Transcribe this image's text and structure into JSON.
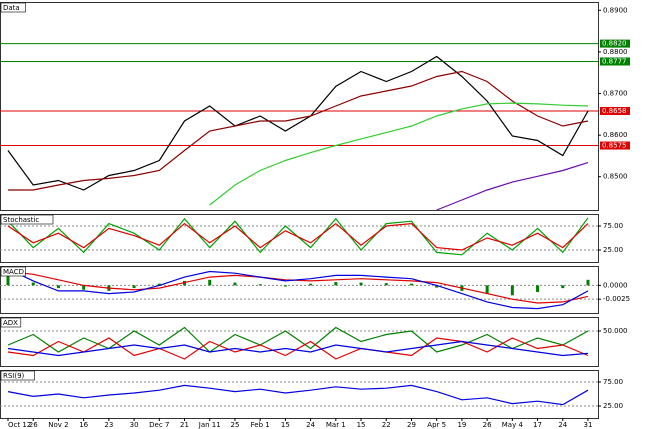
{
  "chart_data": [
    {
      "type": "line",
      "title": "Data",
      "categories": [
        "Oct 12",
        "26",
        "Nov 2",
        "16",
        "23",
        "30",
        "Dec 7",
        "21",
        "Jan 11",
        "25",
        "Feb 1",
        "15",
        "24",
        "Mar 1",
        "15",
        "22",
        "29",
        "Apr 5",
        "19",
        "26",
        "May 4",
        "17",
        "24",
        "31"
      ],
      "ylim": [
        0.842,
        0.892
      ],
      "yticks": [
        {
          "value": 0.89,
          "label": "0.8900"
        },
        {
          "value": 0.88,
          "label": "0.8800"
        },
        {
          "value": 0.87,
          "label": "0.8700"
        },
        {
          "value": 0.86,
          "label": "0.8600"
        },
        {
          "value": 0.85,
          "label": "0.8500"
        }
      ],
      "levels": [
        {
          "value": 0.882,
          "color": "#008000",
          "label": "0.8820"
        },
        {
          "value": 0.8777,
          "color": "#008000",
          "label": "0.8777"
        },
        {
          "value": 0.8658,
          "color": "#e00000",
          "label": "0.8658"
        },
        {
          "value": 0.8575,
          "color": "#e00000",
          "label": "0.8575"
        }
      ],
      "series": [
        {
          "color": "#000000",
          "values": [
            0.8563,
            0.848,
            0.8491,
            0.8468,
            0.8503,
            0.8515,
            0.8539,
            0.8634,
            0.867,
            0.8622,
            0.8646,
            0.861,
            0.8646,
            0.8717,
            0.8753,
            0.8729,
            0.8753,
            0.8789,
            0.8741,
            0.8682,
            0.8598,
            0.8587,
            0.8551,
            0.8658
          ]
        },
        {
          "color": "#8b0000",
          "values": [
            0.8468,
            0.8468,
            0.848,
            0.8491,
            0.8496,
            0.8503,
            0.8515,
            0.8563,
            0.861,
            0.8622,
            0.8634,
            0.8634,
            0.8646,
            0.867,
            0.8694,
            0.8706,
            0.8718,
            0.8741,
            0.8753,
            0.8729,
            0.8682,
            0.8646,
            0.8622,
            0.8634
          ]
        },
        {
          "color": "#33cc33",
          "values": [
            null,
            null,
            null,
            null,
            null,
            null,
            null,
            null,
            0.8432,
            0.848,
            0.8515,
            0.8539,
            0.8558,
            0.8575,
            0.8591,
            0.8606,
            0.8622,
            0.8646,
            0.8663,
            0.8675,
            0.8677,
            0.8675,
            0.8672,
            0.867
          ]
        },
        {
          "color": "#6a0dad",
          "values": [
            null,
            null,
            null,
            null,
            null,
            null,
            null,
            null,
            null,
            null,
            null,
            null,
            null,
            null,
            null,
            null,
            null,
            0.842,
            0.8444,
            0.8468,
            0.8487,
            0.8501,
            0.8515,
            0.8534
          ]
        }
      ]
    },
    {
      "type": "line",
      "title": "Stochastic",
      "ylim": [
        0,
        100
      ],
      "yticks": [
        {
          "value": 75,
          "label": "75.00"
        },
        {
          "value": 25,
          "label": "25.00"
        }
      ],
      "series": [
        {
          "color": "#00a000",
          "values": [
            85,
            30,
            70,
            20,
            80,
            60,
            25,
            90,
            30,
            85,
            20,
            75,
            30,
            90,
            25,
            80,
            85,
            20,
            15,
            60,
            25,
            70,
            20,
            92
          ]
        },
        {
          "color": "#e00000",
          "values": [
            75,
            40,
            60,
            30,
            70,
            55,
            35,
            80,
            40,
            75,
            30,
            65,
            40,
            80,
            35,
            75,
            80,
            30,
            25,
            50,
            35,
            60,
            30,
            80
          ]
        }
      ]
    },
    {
      "type": "line",
      "title": "MACD",
      "ylim": [
        -0.005,
        0.0035
      ],
      "yticks": [
        {
          "value": 0,
          "label": "0.0000"
        },
        {
          "value": -0.0025,
          "label": "-0.0025"
        }
      ],
      "series": [
        {
          "color": "#008000",
          "style": "bar",
          "values": [
            0.002,
            0.0005,
            -0.0005,
            -0.0008,
            -0.001,
            -0.0005,
            0.0003,
            0.0008,
            0.001,
            0.0005,
            0.0002,
            -0.0002,
            0.0003,
            0.0006,
            0.0005,
            0.0004,
            0.0003,
            -0.0004,
            -0.001,
            -0.0015,
            -0.0018,
            -0.0012,
            -0.0005,
            0.001
          ]
        },
        {
          "color": "#e00000",
          "values": [
            0.0025,
            0.002,
            0.001,
            0,
            -0.0005,
            -0.0008,
            -0.0005,
            0.0005,
            0.0015,
            0.0018,
            0.0015,
            0.001,
            0.0008,
            0.001,
            0.0012,
            0.001,
            0.0008,
            0.0005,
            -0.0005,
            -0.0015,
            -0.0025,
            -0.0032,
            -0.003,
            -0.002
          ]
        },
        {
          "color": "#0000e0",
          "values": [
            0.003,
            0.0008,
            -0.001,
            -0.001,
            -0.0015,
            -0.0012,
            0,
            0.0015,
            0.0025,
            0.0022,
            0.0015,
            0.0008,
            0.0012,
            0.0018,
            0.0018,
            0.0015,
            0.0012,
            0,
            -0.0015,
            -0.003,
            -0.004,
            -0.0042,
            -0.0035,
            -0.001
          ]
        }
      ]
    },
    {
      "type": "line",
      "title": "ADX",
      "ylim": [
        0,
        70
      ],
      "yticks": [
        {
          "value": 50,
          "label": "50.000"
        }
      ],
      "series": [
        {
          "color": "#008000",
          "values": [
            30,
            45,
            20,
            40,
            25,
            50,
            30,
            55,
            20,
            45,
            30,
            50,
            25,
            55,
            35,
            45,
            50,
            20,
            30,
            45,
            25,
            40,
            30,
            50
          ]
        },
        {
          "color": "#e00000",
          "values": [
            20,
            15,
            35,
            20,
            40,
            15,
            25,
            10,
            35,
            20,
            30,
            15,
            35,
            10,
            25,
            20,
            15,
            40,
            35,
            20,
            40,
            25,
            30,
            15
          ]
        },
        {
          "color": "#0000e0",
          "values": [
            25,
            20,
            15,
            20,
            25,
            30,
            25,
            30,
            20,
            25,
            20,
            25,
            20,
            30,
            25,
            20,
            25,
            30,
            35,
            30,
            25,
            20,
            15,
            18
          ]
        }
      ]
    },
    {
      "type": "line",
      "title": "RSI(9)",
      "ylim": [
        0,
        100
      ],
      "yticks": [
        {
          "value": 75,
          "label": "75.00"
        },
        {
          "value": 25,
          "label": "25.00"
        }
      ],
      "series": [
        {
          "color": "#0000e0",
          "values": [
            55,
            45,
            50,
            42,
            48,
            52,
            58,
            68,
            62,
            55,
            60,
            52,
            58,
            65,
            60,
            62,
            68,
            55,
            38,
            42,
            30,
            35,
            28,
            58
          ]
        }
      ]
    }
  ]
}
